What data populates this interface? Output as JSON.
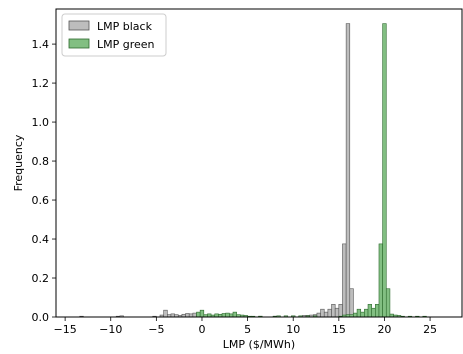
{
  "chart_data": {
    "type": "histogram",
    "title": "",
    "xlabel": "LMP ($/MWh)",
    "ylabel": "Frequency",
    "xlim": [
      -16,
      28.5
    ],
    "ylim": [
      0,
      1.58
    ],
    "xticks": [
      -15,
      -10,
      -5,
      0,
      5,
      10,
      15,
      20,
      25
    ],
    "xtick_labels": [
      "−15",
      "−10",
      "−5",
      "0",
      "5",
      "10",
      "15",
      "20",
      "25"
    ],
    "yticks": [
      0.0,
      0.2,
      0.4,
      0.6,
      0.8,
      1.0,
      1.2,
      1.4
    ],
    "ytick_labels": [
      "0.0",
      "0.2",
      "0.4",
      "0.6",
      "0.8",
      "1.0",
      "1.2",
      "1.4"
    ],
    "legend": {
      "position": "upper-left",
      "entries": [
        {
          "label": "LMP black",
          "color": "#bdbdbd"
        },
        {
          "label": "LMP green",
          "color": "#82bf82"
        }
      ]
    },
    "bin_width": 0.4,
    "series": [
      {
        "name": "LMP black",
        "color": "#bdbdbd",
        "edge": "#555555",
        "bins": [
          [
            -13.4,
            0.004
          ],
          [
            -9.4,
            0.004
          ],
          [
            -9.0,
            0.006
          ],
          [
            -5.4,
            0.004
          ],
          [
            -4.6,
            0.01
          ],
          [
            -4.2,
            0.035
          ],
          [
            -3.8,
            0.012
          ],
          [
            -3.4,
            0.016
          ],
          [
            -3.0,
            0.012
          ],
          [
            -2.6,
            0.008
          ],
          [
            -2.2,
            0.014
          ],
          [
            -1.8,
            0.018
          ],
          [
            -1.4,
            0.016
          ],
          [
            -1.0,
            0.02
          ],
          [
            -0.6,
            0.018
          ],
          [
            -0.2,
            0.012
          ],
          [
            0.2,
            0.01
          ],
          [
            0.6,
            0.008
          ],
          [
            1.0,
            0.006
          ],
          [
            1.4,
            0.004
          ],
          [
            6.2,
            0.004
          ],
          [
            7.8,
            0.004
          ],
          [
            9.8,
            0.006
          ],
          [
            11.0,
            0.008
          ],
          [
            11.4,
            0.008
          ],
          [
            11.8,
            0.01
          ],
          [
            12.2,
            0.012
          ],
          [
            12.6,
            0.02
          ],
          [
            13.0,
            0.04
          ],
          [
            13.4,
            0.025
          ],
          [
            13.8,
            0.04
          ],
          [
            14.2,
            0.065
          ],
          [
            14.6,
            0.045
          ],
          [
            15.0,
            0.065
          ],
          [
            15.4,
            0.375
          ],
          [
            15.8,
            1.505
          ],
          [
            16.2,
            0.145
          ],
          [
            16.6,
            0.015
          ],
          [
            17.0,
            0.01
          ],
          [
            17.4,
            0.006
          ],
          [
            17.8,
            0.004
          ],
          [
            18.6,
            0.004
          ]
        ]
      },
      {
        "name": "LMP green",
        "color": "#82bf82",
        "edge": "#2d6a2d",
        "bins": [
          [
            -0.6,
            0.025
          ],
          [
            -0.2,
            0.035
          ],
          [
            0.2,
            0.012
          ],
          [
            0.6,
            0.016
          ],
          [
            1.0,
            0.01
          ],
          [
            1.4,
            0.016
          ],
          [
            1.8,
            0.014
          ],
          [
            2.2,
            0.018
          ],
          [
            2.6,
            0.02
          ],
          [
            3.0,
            0.016
          ],
          [
            3.4,
            0.025
          ],
          [
            3.8,
            0.012
          ],
          [
            4.2,
            0.01
          ],
          [
            4.6,
            0.008
          ],
          [
            5.0,
            0.004
          ],
          [
            5.4,
            0.004
          ],
          [
            6.2,
            0.004
          ],
          [
            7.8,
            0.004
          ],
          [
            8.2,
            0.006
          ],
          [
            9.0,
            0.006
          ],
          [
            9.8,
            0.006
          ],
          [
            10.6,
            0.006
          ],
          [
            11.4,
            0.006
          ],
          [
            12.2,
            0.006
          ],
          [
            15.0,
            0.004
          ],
          [
            15.4,
            0.01
          ],
          [
            15.8,
            0.012
          ],
          [
            16.2,
            0.012
          ],
          [
            16.6,
            0.02
          ],
          [
            17.0,
            0.04
          ],
          [
            17.4,
            0.025
          ],
          [
            17.8,
            0.04
          ],
          [
            18.2,
            0.065
          ],
          [
            18.6,
            0.045
          ],
          [
            19.0,
            0.065
          ],
          [
            19.4,
            0.375
          ],
          [
            19.8,
            1.505
          ],
          [
            20.2,
            0.145
          ],
          [
            20.6,
            0.015
          ],
          [
            21.0,
            0.01
          ],
          [
            21.4,
            0.008
          ],
          [
            21.8,
            0.004
          ],
          [
            22.6,
            0.004
          ],
          [
            23.4,
            0.004
          ],
          [
            24.2,
            0.004
          ]
        ]
      }
    ]
  }
}
